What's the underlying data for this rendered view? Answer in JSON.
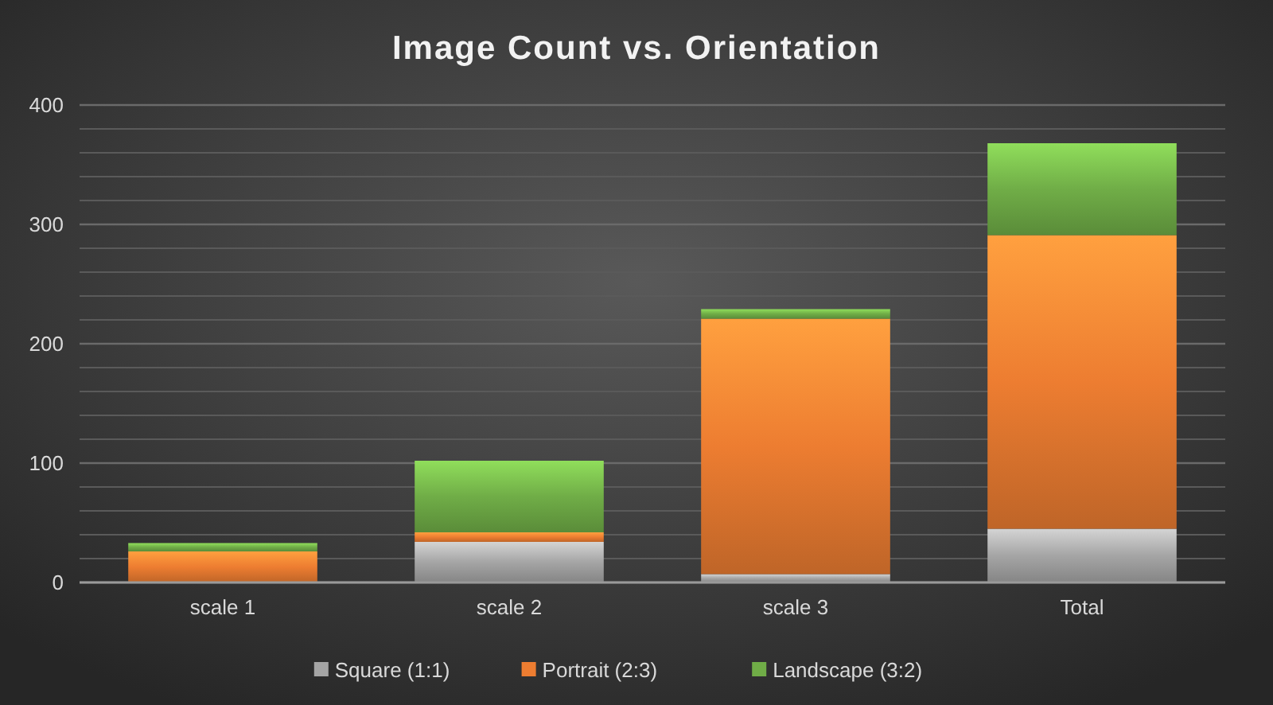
{
  "chart_data": {
    "type": "bar",
    "title": "Image Count vs. Orientation",
    "categories": [
      "scale 1",
      "scale 2",
      "scale 3",
      "Total"
    ],
    "stacked": true,
    "series": [
      {
        "name": "Square (1:1)",
        "color": "#a5a5a5",
        "values": [
          0,
          34,
          7,
          45
        ]
      },
      {
        "name": "Portrait (2:3)",
        "color": "#ed7d31",
        "values": [
          26,
          8,
          214,
          246
        ]
      },
      {
        "name": "Landscape (3:2)",
        "color": "#70ad47",
        "values": [
          7,
          60,
          8,
          77
        ]
      }
    ],
    "ylim": [
      0,
      400
    ],
    "yticks": [
      0,
      100,
      200,
      300,
      400
    ],
    "grid": true,
    "legend": "bottom"
  }
}
